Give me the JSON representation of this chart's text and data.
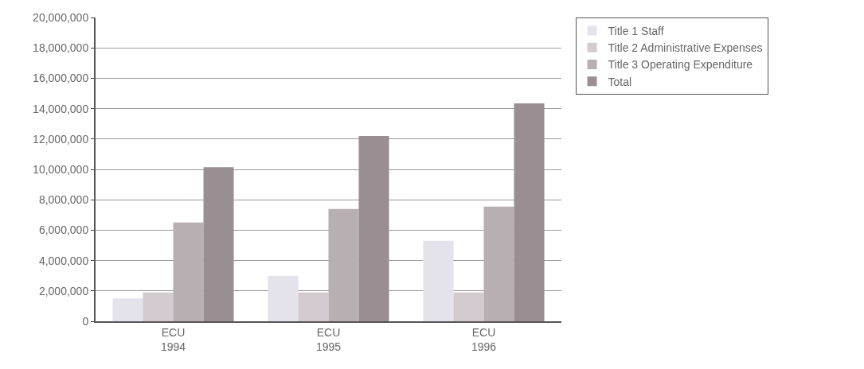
{
  "chart_data": {
    "type": "bar",
    "categories": [
      "ECU\n1994",
      "ECU\n1995",
      "ECU\n1996"
    ],
    "series": [
      {
        "name": "Title 1 Staff",
        "color": "#e4e2ea",
        "values": [
          1500000,
          3000000,
          5300000
        ]
      },
      {
        "name": "Title 2 Administrative Expenses",
        "color": "#d3cbcf",
        "values": [
          1900000,
          1900000,
          1900000
        ]
      },
      {
        "name": "Title 3 Operating Expenditure",
        "color": "#b8afb3",
        "values": [
          6500000,
          7400000,
          7550000
        ]
      },
      {
        "name": "Total",
        "color": "#998e92",
        "values": [
          10150000,
          12200000,
          14350000
        ]
      }
    ],
    "ylim": [
      0,
      20000000
    ],
    "yticks": [
      {
        "value": 0,
        "label": "0"
      },
      {
        "value": 2000000,
        "label": "2,000,000"
      },
      {
        "value": 4000000,
        "label": "4,000,000"
      },
      {
        "value": 6000000,
        "label": "6,000,000"
      },
      {
        "value": 8000000,
        "label": "8,000,000"
      },
      {
        "value": 10000000,
        "label": "10,000,000"
      },
      {
        "value": 12000000,
        "label": "12,000,000"
      },
      {
        "value": 14000000,
        "label": "14,000,000"
      },
      {
        "value": 16000000,
        "label": "16,000,000"
      },
      {
        "value": 18000000,
        "label": "18,000,000"
      },
      {
        "value": 20000000,
        "label": "20,000,000"
      }
    ],
    "grid": "y",
    "legend": "top right"
  }
}
